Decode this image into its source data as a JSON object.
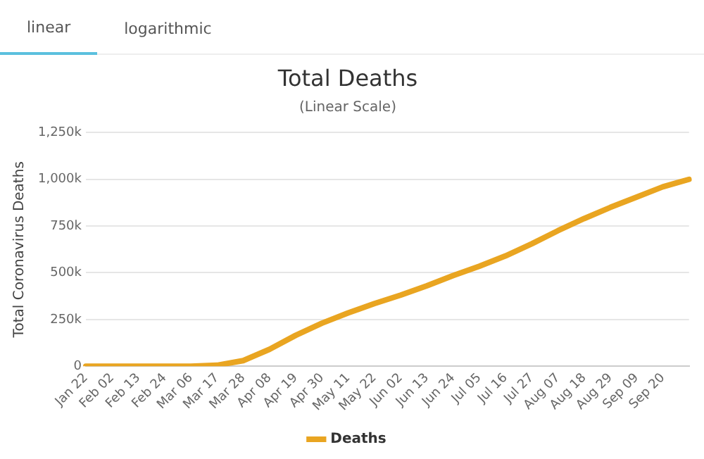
{
  "chart_data": {
    "type": "line",
    "title": "Total Deaths",
    "subtitle": "(Linear Scale)",
    "ylabel": "Total Coronavirus Deaths",
    "annotations": [
      "linear",
      "logarithmic"
    ],
    "categories": [
      "Jan 22",
      "Feb 02",
      "Feb 13",
      "Feb 24",
      "Mar 06",
      "Mar 17",
      "Mar 28",
      "Apr 08",
      "Apr 19",
      "Apr 30",
      "May 11",
      "May 22",
      "Jun 02",
      "Jun 13",
      "Jun 24",
      "Jul 05",
      "Jul 16",
      "Jul 27",
      "Aug 07",
      "Aug 18",
      "Aug 29",
      "Sep 09",
      "Sep 20",
      null
    ],
    "series": [
      {
        "name": "Deaths",
        "color": "#e9a521",
        "values": [
          0,
          0,
          0,
          0,
          0,
          5000,
          30000,
          90000,
          165000,
          230000,
          285000,
          335000,
          380000,
          430000,
          485000,
          535000,
          590000,
          655000,
          725000,
          790000,
          850000,
          905000,
          960000,
          1000000
        ]
      }
    ],
    "ylim": [
      0,
      1250000
    ],
    "yticks": [
      {
        "value": 0,
        "label": "0"
      },
      {
        "value": 250000,
        "label": "250k"
      },
      {
        "value": 500000,
        "label": "500k"
      },
      {
        "value": 750000,
        "label": "750k"
      },
      {
        "value": 1000000,
        "label": "1,000k"
      },
      {
        "value": 1250000,
        "label": "1,250k"
      }
    ],
    "grid": "y",
    "legend": "bottom",
    "marker": "none",
    "line_style": "solid"
  }
}
